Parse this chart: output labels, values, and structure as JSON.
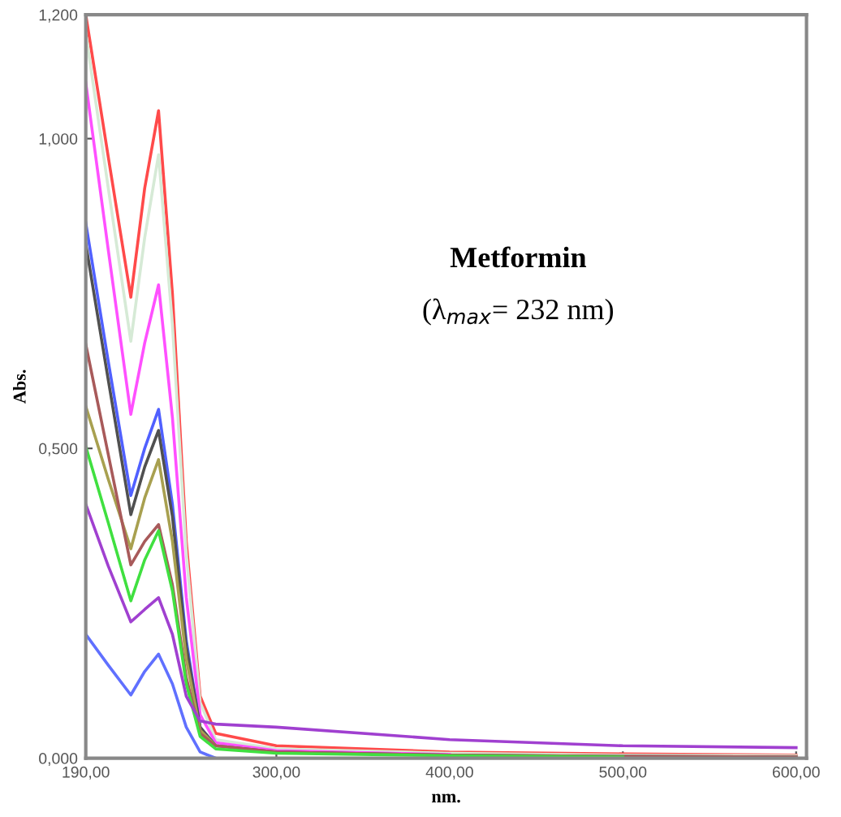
{
  "chart_data": {
    "type": "line",
    "xlabel": "nm.",
    "ylabel": "Abs.",
    "annotations": [
      "Metformin",
      "(λ$_{max}$= 232 nm)"
    ],
    "x": [
      190,
      203,
      216,
      224,
      232,
      240,
      248,
      256,
      265,
      300,
      400,
      500,
      600
    ],
    "series": [
      {
        "color": "#ff4a4a",
        "values": [
          1.2,
          0.97,
          0.744,
          0.92,
          1.045,
          0.75,
          0.35,
          0.1,
          0.04,
          0.02,
          0.01,
          0.007,
          0.005
        ]
      },
      {
        "color": "#d6ead6",
        "values": [
          1.17,
          0.92,
          0.673,
          0.84,
          0.974,
          0.7,
          0.33,
          0.09,
          0.03,
          0.015,
          0.008,
          0.005,
          0.004
        ]
      },
      {
        "color": "#ff50ff",
        "values": [
          1.09,
          0.82,
          0.555,
          0.67,
          0.764,
          0.55,
          0.26,
          0.07,
          0.025,
          0.012,
          0.006,
          null,
          null
        ]
      },
      {
        "color": "#5060ff",
        "values": [
          0.864,
          0.64,
          0.424,
          0.5,
          0.563,
          0.41,
          0.19,
          0.05,
          0.02,
          null,
          null,
          null,
          null
        ]
      },
      {
        "color": "#505050",
        "values": [
          0.83,
          0.61,
          0.393,
          0.47,
          0.529,
          0.39,
          0.18,
          0.05,
          0.02,
          0.01,
          0.005,
          0.003,
          0.002
        ]
      },
      {
        "color": "#a8a050",
        "values": [
          0.568,
          0.45,
          0.338,
          0.42,
          0.482,
          0.35,
          0.16,
          0.045,
          0.02,
          null,
          null,
          null,
          null
        ]
      },
      {
        "color": "#a85a5a",
        "values": [
          0.668,
          0.49,
          0.312,
          0.35,
          0.377,
          0.28,
          0.13,
          0.04,
          0.02,
          0.01,
          0.005,
          0.003,
          0.002
        ]
      },
      {
        "color": "#40e040",
        "values": [
          0.503,
          0.38,
          0.254,
          0.32,
          0.367,
          0.27,
          0.12,
          0.035,
          0.015,
          0.008,
          0.004,
          0.002,
          null
        ]
      },
      {
        "color": "#a040d0",
        "values": [
          0.41,
          0.31,
          0.22,
          0.24,
          0.259,
          0.2,
          0.1,
          0.06,
          0.055,
          0.05,
          0.03,
          0.02,
          0.017
        ]
      },
      {
        "color": "#6070ff",
        "values": [
          0.2,
          0.15,
          0.102,
          0.14,
          0.168,
          0.12,
          0.05,
          0.01,
          0.0,
          null,
          null,
          null,
          null
        ]
      }
    ],
    "xlim": [
      190,
      606
    ],
    "ylim": [
      0,
      1.2
    ],
    "xticks": [
      {
        "value": 190,
        "label": "190,00"
      },
      {
        "value": 300,
        "label": "300,00"
      },
      {
        "value": 400,
        "label": "400,00"
      },
      {
        "value": 500,
        "label": "500,00"
      },
      {
        "value": 600,
        "label": "600,00"
      }
    ],
    "yticks": [
      {
        "value": 0,
        "label": "0,000"
      },
      {
        "value": 0.5,
        "label": "0,500"
      },
      {
        "value": 1.0,
        "label": "1,000"
      },
      {
        "value": 1.2,
        "label": "1,200"
      }
    ],
    "grid": false,
    "legend": false
  }
}
